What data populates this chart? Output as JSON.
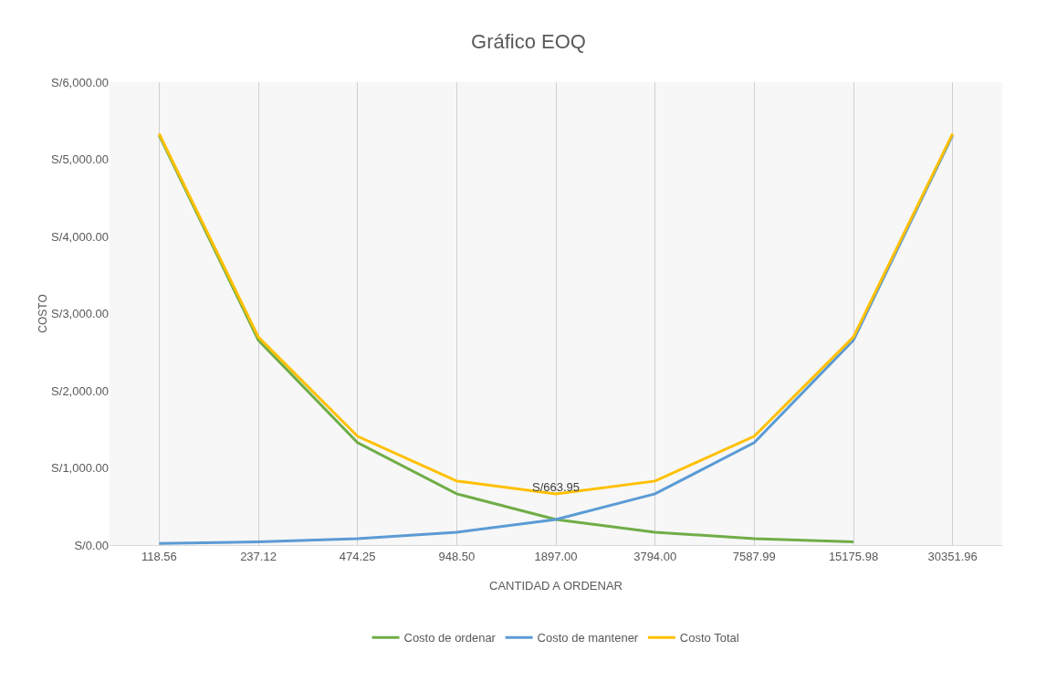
{
  "chart_data": {
    "type": "line",
    "title": "Gráfico EOQ",
    "xlabel": "CANTIDAD A ORDENAR",
    "ylabel": "COSTO",
    "categories": [
      "118.56",
      "237.12",
      "474.25",
      "948.50",
      "1897.00",
      "3794.00",
      "7587.99",
      "15175.98",
      "30351.96"
    ],
    "series": [
      {
        "name": "Costo de ordenar",
        "color": "#70ad47",
        "values": [
          5312,
          2656,
          1328,
          664,
          332,
          166,
          83,
          41,
          null
        ]
      },
      {
        "name": "Costo de mantener",
        "color": "#5b9bd5",
        "values": [
          21,
          41,
          83,
          166,
          332,
          664,
          1328,
          2656,
          5312
        ]
      },
      {
        "name": "Costo Total",
        "color": "#ffc000",
        "values": [
          5333,
          2697,
          1411,
          830,
          663.95,
          830,
          1411,
          2697,
          5333
        ],
        "value_labels": [
          null,
          null,
          null,
          null,
          "S/663.95",
          null,
          null,
          null,
          null
        ]
      }
    ],
    "ylim": [
      0,
      6000
    ],
    "yticks": [
      {
        "value": 0,
        "label": "S/0.00"
      },
      {
        "value": 1000,
        "label": "S/1,000.00"
      },
      {
        "value": 2000,
        "label": "S/2,000.00"
      },
      {
        "value": 3000,
        "label": "S/3,000.00"
      },
      {
        "value": 4000,
        "label": "S/4,000.00"
      },
      {
        "value": 5000,
        "label": "S/5,000.00"
      },
      {
        "value": 6000,
        "label": "S/6,000.00"
      }
    ],
    "grid": "x",
    "legend": "bottom",
    "marker": "none",
    "line_style": "solid"
  }
}
